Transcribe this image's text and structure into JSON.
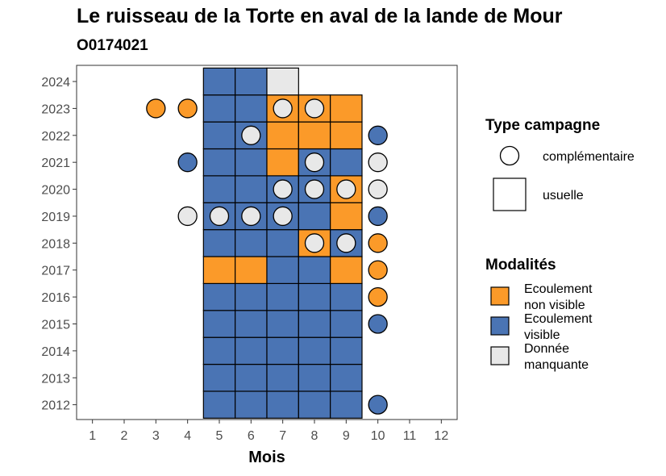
{
  "chart_data": {
    "type": "heatmap",
    "title": "Le ruisseau de la Torte en aval de la lande de Mour",
    "subtitle": "O0174021",
    "xlabel": "Mois",
    "ylabel": "",
    "x_ticks": [
      "1",
      "2",
      "3",
      "4",
      "5",
      "6",
      "7",
      "8",
      "9",
      "10",
      "11",
      "12"
    ],
    "y_ticks": [
      "2012",
      "2013",
      "2014",
      "2015",
      "2016",
      "2017",
      "2018",
      "2019",
      "2020",
      "2021",
      "2022",
      "2023",
      "2024"
    ],
    "xlim": [
      0.5,
      12.5
    ],
    "ylim": [
      2011.45,
      2024.6
    ],
    "grid": false,
    "legend_type": {
      "title": "Type campagne",
      "items": [
        {
          "label": "complémentaire",
          "shape": "circle"
        },
        {
          "label": "usuelle",
          "shape": "square"
        }
      ]
    },
    "legend_modalites": {
      "title": "Modalités",
      "items": [
        {
          "key": "nv",
          "lines": [
            "Ecoulement",
            "non visible"
          ],
          "color": "#fb9a29"
        },
        {
          "key": "v",
          "lines": [
            "Ecoulement",
            "visible"
          ],
          "color": "#4a74b4"
        },
        {
          "key": "m",
          "lines": [
            "Donnée",
            "manquante"
          ],
          "color": "#e8e8e8"
        }
      ]
    },
    "colors": {
      "nv": "#fb9a29",
      "v": "#4a74b4",
      "m": "#e8e8e8"
    },
    "usuelle": [
      {
        "year": 2012,
        "months": [
          5,
          6,
          7,
          8,
          9
        ],
        "values": [
          "v",
          "v",
          "v",
          "v",
          "v"
        ]
      },
      {
        "year": 2013,
        "months": [
          5,
          6,
          7,
          8,
          9
        ],
        "values": [
          "v",
          "v",
          "v",
          "v",
          "v"
        ]
      },
      {
        "year": 2014,
        "months": [
          5,
          6,
          7,
          8,
          9
        ],
        "values": [
          "v",
          "v",
          "v",
          "v",
          "v"
        ]
      },
      {
        "year": 2015,
        "months": [
          5,
          6,
          7,
          8,
          9
        ],
        "values": [
          "v",
          "v",
          "v",
          "v",
          "v"
        ]
      },
      {
        "year": 2016,
        "months": [
          5,
          6,
          7,
          8,
          9
        ],
        "values": [
          "v",
          "v",
          "v",
          "v",
          "v"
        ]
      },
      {
        "year": 2017,
        "months": [
          5,
          6,
          7,
          8,
          9
        ],
        "values": [
          "nv",
          "nv",
          "v",
          "v",
          "nv"
        ]
      },
      {
        "year": 2018,
        "months": [
          5,
          6,
          7,
          8,
          9
        ],
        "values": [
          "v",
          "v",
          "v",
          "nv",
          "v"
        ]
      },
      {
        "year": 2019,
        "months": [
          5,
          6,
          7,
          8,
          9
        ],
        "values": [
          "v",
          "v",
          "v",
          "v",
          "nv"
        ]
      },
      {
        "year": 2020,
        "months": [
          5,
          6,
          7,
          8,
          9
        ],
        "values": [
          "v",
          "v",
          "v",
          "v",
          "nv"
        ]
      },
      {
        "year": 2021,
        "months": [
          5,
          6,
          7,
          8,
          9
        ],
        "values": [
          "v",
          "v",
          "nv",
          "v",
          "v"
        ]
      },
      {
        "year": 2022,
        "months": [
          5,
          6,
          7,
          8,
          9
        ],
        "values": [
          "v",
          "v",
          "nv",
          "nv",
          "nv"
        ]
      },
      {
        "year": 2023,
        "months": [
          5,
          6,
          7,
          8,
          9
        ],
        "values": [
          "v",
          "v",
          "nv",
          "nv",
          "nv"
        ]
      },
      {
        "year": 2024,
        "months": [
          5,
          6,
          7
        ],
        "values": [
          "v",
          "v",
          "m"
        ]
      }
    ],
    "complementaire": [
      {
        "year": 2012,
        "month": 10,
        "value": "v"
      },
      {
        "year": 2015,
        "month": 10,
        "value": "v"
      },
      {
        "year": 2016,
        "month": 10,
        "value": "nv"
      },
      {
        "year": 2017,
        "month": 10,
        "value": "nv"
      },
      {
        "year": 2018,
        "month": 8,
        "value": "m"
      },
      {
        "year": 2018,
        "month": 9,
        "value": "m"
      },
      {
        "year": 2018,
        "month": 10,
        "value": "nv"
      },
      {
        "year": 2019,
        "month": 4,
        "value": "m"
      },
      {
        "year": 2019,
        "month": 5,
        "value": "m"
      },
      {
        "year": 2019,
        "month": 6,
        "value": "m"
      },
      {
        "year": 2019,
        "month": 7,
        "value": "m"
      },
      {
        "year": 2019,
        "month": 10,
        "value": "v"
      },
      {
        "year": 2020,
        "month": 7,
        "value": "m"
      },
      {
        "year": 2020,
        "month": 8,
        "value": "m"
      },
      {
        "year": 2020,
        "month": 9,
        "value": "m"
      },
      {
        "year": 2020,
        "month": 10,
        "value": "m"
      },
      {
        "year": 2021,
        "month": 4,
        "value": "v"
      },
      {
        "year": 2021,
        "month": 8,
        "value": "m"
      },
      {
        "year": 2021,
        "month": 10,
        "value": "m"
      },
      {
        "year": 2022,
        "month": 6,
        "value": "m"
      },
      {
        "year": 2022,
        "month": 10,
        "value": "v"
      },
      {
        "year": 2023,
        "month": 3,
        "value": "nv"
      },
      {
        "year": 2023,
        "month": 4,
        "value": "nv"
      },
      {
        "year": 2023,
        "month": 7,
        "value": "m"
      },
      {
        "year": 2023,
        "month": 8,
        "value": "m"
      }
    ]
  }
}
